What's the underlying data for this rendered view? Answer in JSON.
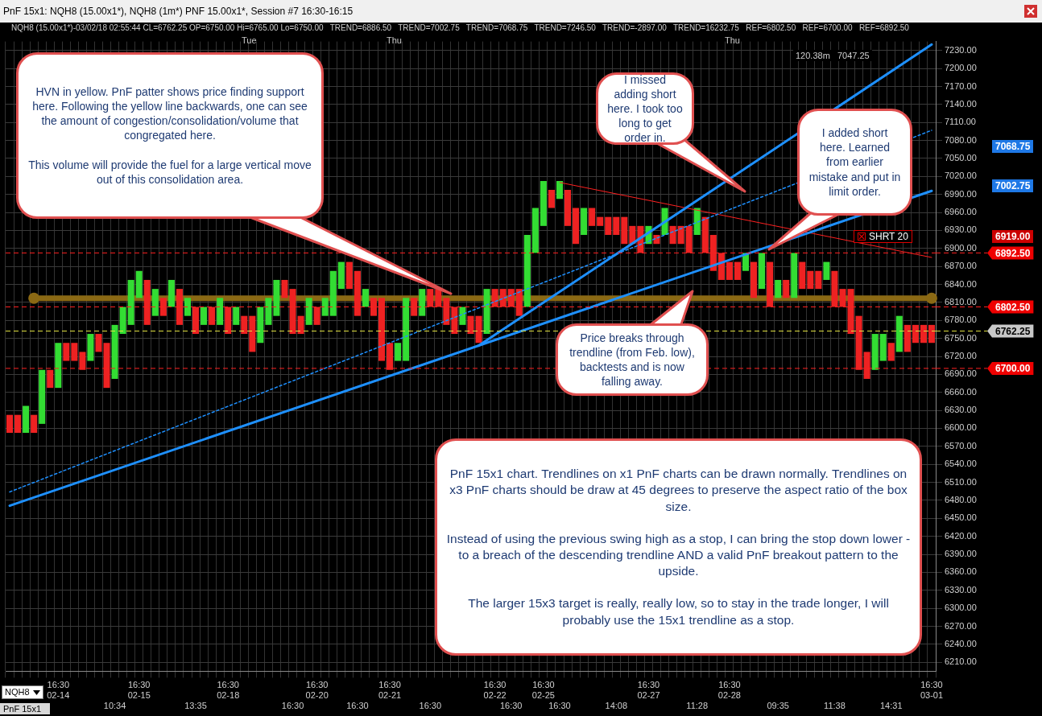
{
  "chart_data": {
    "type": "bar",
    "title": "PnF 15x1: NQH8 (15.00x1*), NQH8 (1m*) PNF 15.00x1*, Session #7 16:30-16:15",
    "subtitle": "NQH8 (15.00x1*)-03/02/18 02:55:44 CL=6762.25 OP=6750.00 Hi=6765.00 Lo=6750.00   TREND=6886.50   TREND=7002.75   TREND=7068.75   TREND=7246.50   TREND=-2897.00   TREND=16232.75   REF=6802.50   REF=6700.00   REF=6892.50",
    "categories": [
      null,
      null,
      null,
      null,
      null,
      null,
      "16:30\n02-14",
      null,
      null,
      null,
      null,
      null,
      null,
      "10:34",
      null,
      null,
      "16:30\n02-15",
      null,
      null,
      null,
      null,
      null,
      null,
      "13:35",
      null,
      null,
      null,
      "16:30\n02-18",
      null,
      null,
      null,
      null,
      null,
      null,
      null,
      "16:30",
      null,
      null,
      "16:30\n02-20",
      null,
      null,
      null,
      null,
      "16:30",
      null,
      null,
      null,
      "16:30\n02-21",
      null,
      null,
      null,
      null,
      "16:30",
      null,
      null,
      null,
      null,
      null,
      null,
      null,
      "16:30\n02-22",
      null,
      "16:30",
      null,
      null,
      null,
      "16:30\n02-25",
      null,
      "16:30",
      null,
      null,
      null,
      null,
      null,
      null,
      "14:08",
      null,
      null,
      null,
      "16:30\n02-27",
      null,
      null,
      null,
      null,
      null,
      "11:28",
      null,
      null,
      null,
      "16:30\n02-28",
      null,
      null,
      null,
      null,
      null,
      "09:35",
      null,
      null,
      null,
      null,
      null,
      null,
      "11:38",
      null,
      null,
      null,
      null,
      null,
      null,
      "14:31",
      null,
      null,
      null,
      null,
      "16:30\n03-01"
    ],
    "base": [
      6592.5,
      6592.5,
      6592.5,
      6592.5,
      6607.5,
      6667.5,
      6667.5,
      6712.5,
      6712.5,
      6697.5,
      6712.5,
      6727.5,
      6667.5,
      6682.5,
      6757.5,
      6772.5,
      6817.5,
      6772.5,
      6787.5,
      6787.5,
      6802.5,
      6772.5,
      6787.5,
      6757.5,
      6772.5,
      6772.5,
      6772.5,
      6757.5,
      6772.5,
      6757.5,
      6727.5,
      6742.5,
      6772.5,
      6787.5,
      6817.5,
      6757.5,
      6757.5,
      6772.5,
      6772.5,
      6787.5,
      6787.5,
      6832.5,
      6832.5,
      6787.5,
      6802.5,
      6787.5,
      6712.5,
      6697.5,
      6712.5,
      6712.5,
      6787.5,
      6787.5,
      6802.5,
      6802.5,
      6772.5,
      6757.5,
      6772.5,
      6757.5,
      6742.5,
      6757.5,
      6802.5,
      6802.5,
      6802.5,
      6787.5,
      6802.5,
      6892.5,
      6937.5,
      6967.5,
      6982.5,
      6937.5,
      6907.5,
      6922.5,
      6937.5,
      6937.5,
      6922.5,
      6922.5,
      6907.5,
      6907.5,
      6892.5,
      6907.5,
      6907.5,
      6922.5,
      6907.5,
      6907.5,
      6892.5,
      6922.5,
      6892.5,
      6862.5,
      6847.5,
      6847.5,
      6847.5,
      6862.5,
      6817.5,
      6832.5,
      6802.5,
      6817.5,
      6817.5,
      6817.5,
      6832.5,
      6832.5,
      6832.5,
      6847.5,
      6802.5,
      6802.5,
      6757.5,
      6697.5,
      6682.5,
      6697.5,
      6712.5,
      6712.5,
      6727.5,
      6727.5,
      6742.5,
      6742.5,
      6742.5
    ],
    "values": [
      30,
      30,
      45,
      30,
      90,
      30,
      75,
      30,
      30,
      30,
      45,
      30,
      75,
      90,
      45,
      75,
      45,
      75,
      45,
      30,
      45,
      60,
      30,
      45,
      30,
      30,
      45,
      45,
      30,
      30,
      60,
      60,
      45,
      60,
      30,
      75,
      30,
      45,
      30,
      30,
      75,
      45,
      45,
      75,
      30,
      30,
      105,
      45,
      30,
      105,
      30,
      45,
      30,
      30,
      45,
      45,
      30,
      30,
      45,
      75,
      30,
      30,
      30,
      45,
      120,
      75,
      75,
      30,
      30,
      60,
      60,
      45,
      30,
      15,
      30,
      30,
      45,
      30,
      45,
      30,
      15,
      45,
      30,
      30,
      45,
      45,
      60,
      60,
      45,
      30,
      30,
      30,
      60,
      60,
      75,
      30,
      30,
      75,
      45,
      30,
      30,
      30,
      60,
      30,
      75,
      90,
      45,
      60,
      45,
      30,
      60,
      45,
      30,
      30,
      30
    ],
    "colors": [
      "#ee2222",
      "#ee2222",
      "#33dd33",
      "#ee2222",
      "#33dd33",
      "#ee2222",
      "#33dd33",
      "#ee2222",
      "#ee2222",
      "#ee2222",
      "#33dd33",
      "#ee2222",
      "#ee2222",
      "#33dd33",
      "#33dd33",
      "#33dd33",
      "#33dd33",
      "#ee2222",
      "#33dd33",
      "#ee2222",
      "#33dd33",
      "#ee2222",
      "#33dd33",
      "#ee2222",
      "#33dd33",
      "#ee2222",
      "#33dd33",
      "#ee2222",
      "#33dd33",
      "#ee2222",
      "#ee2222",
      "#33dd33",
      "#33dd33",
      "#33dd33",
      "#ee2222",
      "#ee2222",
      "#ee2222",
      "#33dd33",
      "#ee2222",
      "#33dd33",
      "#33dd33",
      "#33dd33",
      "#ee2222",
      "#ee2222",
      "#33dd33",
      "#ee2222",
      "#ee2222",
      "#ee2222",
      "#33dd33",
      "#33dd33",
      "#ee2222",
      "#33dd33",
      "#ee2222",
      "#ee2222",
      "#ee2222",
      "#ee2222",
      "#33dd33",
      "#ee2222",
      "#ee2222",
      "#33dd33",
      "#ee2222",
      "#ee2222",
      "#ee2222",
      "#ee2222",
      "#33dd33",
      "#33dd33",
      "#33dd33",
      "#ee2222",
      "#33dd33",
      "#ee2222",
      "#ee2222",
      "#33dd33",
      "#ee2222",
      "#ee2222",
      "#ee2222",
      "#ee2222",
      "#ee2222",
      "#ee2222",
      "#ee2222",
      "#33dd33",
      "#ee2222",
      "#33dd33",
      "#ee2222",
      "#ee2222",
      "#ee2222",
      "#33dd33",
      "#ee2222",
      "#ee2222",
      "#ee2222",
      "#ee2222",
      "#ee2222",
      "#33dd33",
      "#ee2222",
      "#33dd33",
      "#ee2222",
      "#33dd33",
      "#ee2222",
      "#33dd33",
      "#ee2222",
      "#ee2222",
      "#ee2222",
      "#33dd33",
      "#ee2222",
      "#ee2222",
      "#ee2222",
      "#ee2222",
      "#ee2222",
      "#33dd33",
      "#33dd33",
      "#ee2222",
      "#33dd33",
      "#ee2222",
      "#ee2222",
      "#ee2222",
      "#ee2222"
    ],
    "series": [
      {
        "type": "line",
        "color": "#1e90ff",
        "values": [
          6471,
          null,
          null,
          null,
          null,
          null,
          null,
          null,
          null,
          null,
          null,
          null,
          null,
          null,
          null,
          null,
          null,
          null,
          null,
          null,
          null,
          null,
          null,
          null,
          null,
          null,
          null,
          null,
          null,
          null,
          null,
          null,
          null,
          null,
          null,
          null,
          null,
          null,
          null,
          null,
          null,
          null,
          null,
          null,
          null,
          null,
          null,
          null,
          null,
          null,
          null,
          null,
          null,
          null,
          null,
          null,
          null,
          null,
          null,
          null,
          null,
          null,
          null,
          null,
          null,
          null,
          null,
          null,
          null,
          null,
          null,
          null,
          null,
          null,
          null,
          null,
          null,
          null,
          null,
          null,
          null,
          null,
          null,
          null,
          null,
          null,
          null,
          null,
          null,
          null,
          null,
          null,
          null,
          null,
          null,
          null,
          null,
          null,
          null,
          null,
          null,
          null,
          null,
          null,
          null,
          null,
          null,
          null,
          null,
          null,
          null,
          null,
          null,
          null,
          6996
        ]
      },
      {
        "type": "line",
        "color": "#1e90ff",
        "values": [
          null,
          null,
          null,
          null,
          null,
          null,
          null,
          null,
          null,
          null,
          null,
          null,
          null,
          null,
          null,
          null,
          null,
          null,
          null,
          null,
          null,
          null,
          null,
          null,
          null,
          null,
          null,
          null,
          null,
          null,
          null,
          null,
          null,
          null,
          null,
          null,
          null,
          null,
          null,
          null,
          null,
          null,
          null,
          null,
          null,
          null,
          null,
          null,
          null,
          null,
          null,
          null,
          null,
          null,
          null,
          null,
          null,
          null,
          6738,
          null,
          null,
          null,
          null,
          null,
          null,
          null,
          null,
          null,
          null,
          null,
          null,
          null,
          null,
          null,
          null,
          null,
          null,
          null,
          null,
          null,
          null,
          null,
          null,
          null,
          null,
          null,
          null,
          null,
          null,
          null,
          null,
          null,
          null,
          null,
          null,
          null,
          null,
          null,
          null,
          null,
          null,
          null,
          null,
          null,
          null,
          null,
          null,
          null,
          null,
          null,
          null,
          null,
          null,
          null,
          7240
        ]
      },
      {
        "type": "line",
        "color": "#1e90ff",
        "line_style": "dotted",
        "values": [
          6494,
          null,
          null,
          null,
          null,
          null,
          null,
          null,
          null,
          null,
          null,
          null,
          null,
          null,
          null,
          null,
          null,
          null,
          null,
          null,
          null,
          null,
          null,
          null,
          null,
          null,
          null,
          null,
          null,
          null,
          null,
          null,
          null,
          null,
          null,
          null,
          null,
          null,
          null,
          null,
          null,
          null,
          null,
          null,
          null,
          null,
          null,
          null,
          null,
          null,
          null,
          null,
          null,
          null,
          null,
          null,
          null,
          null,
          null,
          null,
          null,
          null,
          null,
          null,
          null,
          null,
          null,
          null,
          null,
          null,
          null,
          null,
          null,
          null,
          null,
          null,
          null,
          null,
          null,
          null,
          null,
          null,
          null,
          null,
          null,
          null,
          null,
          null,
          null,
          null,
          null,
          null,
          null,
          null,
          null,
          null,
          null,
          null,
          null,
          null,
          null,
          null,
          null,
          null,
          null,
          null,
          null,
          null,
          null,
          null,
          null,
          null,
          null,
          null,
          7097
        ]
      },
      {
        "type": "line",
        "color": "#ff2020",
        "values": [
          null,
          null,
          null,
          null,
          null,
          null,
          null,
          null,
          null,
          null,
          null,
          null,
          null,
          null,
          null,
          null,
          null,
          null,
          null,
          null,
          null,
          null,
          null,
          null,
          null,
          null,
          null,
          null,
          null,
          null,
          null,
          null,
          null,
          null,
          null,
          null,
          null,
          null,
          null,
          null,
          null,
          null,
          null,
          null,
          null,
          null,
          null,
          null,
          null,
          null,
          null,
          null,
          null,
          null,
          null,
          null,
          null,
          null,
          null,
          null,
          null,
          null,
          null,
          null,
          null,
          null,
          null,
          null,
          7010,
          null,
          null,
          null,
          null,
          null,
          null,
          null,
          null,
          null,
          null,
          null,
          null,
          null,
          null,
          null,
          null,
          null,
          null,
          null,
          null,
          null,
          null,
          null,
          null,
          null,
          null,
          null,
          null,
          null,
          null,
          null,
          null,
          null,
          null,
          null,
          null,
          null,
          null,
          null,
          null,
          null,
          null,
          null,
          null,
          null,
          6885
        ]
      },
      {
        "type": "line",
        "color": "#8b6914",
        "marker": "circle",
        "values": [
          null,
          null,
          null,
          6817,
          null,
          null,
          null,
          null,
          null,
          null,
          null,
          null,
          null,
          null,
          null,
          null,
          null,
          null,
          null,
          null,
          null,
          null,
          null,
          null,
          null,
          null,
          null,
          null,
          null,
          null,
          null,
          null,
          null,
          null,
          null,
          null,
          null,
          null,
          null,
          null,
          null,
          null,
          null,
          null,
          null,
          null,
          null,
          null,
          null,
          null,
          null,
          null,
          null,
          null,
          null,
          null,
          null,
          null,
          null,
          null,
          null,
          null,
          null,
          null,
          null,
          null,
          null,
          null,
          null,
          null,
          null,
          null,
          null,
          null,
          null,
          null,
          null,
          null,
          null,
          null,
          null,
          null,
          null,
          null,
          null,
          null,
          null,
          null,
          null,
          null,
          null,
          null,
          null,
          null,
          null,
          null,
          null,
          null,
          null,
          null,
          null,
          null,
          null,
          null,
          null,
          null,
          null,
          null,
          null,
          null,
          null,
          null,
          null,
          null,
          6817
        ]
      }
    ],
    "ylim": [
      6195,
      7245
    ],
    "yticks": [
      {
        "value": 6210,
        "label": "6210.00"
      },
      {
        "value": 6240,
        "label": "6240.00"
      },
      {
        "value": 6270,
        "label": "6270.00"
      },
      {
        "value": 6300,
        "label": "6300.00"
      },
      {
        "value": 6330,
        "label": "6330.00"
      },
      {
        "value": 6360,
        "label": "6360.00"
      },
      {
        "value": 6390,
        "label": "6390.00"
      },
      {
        "value": 6420,
        "label": "6420.00"
      },
      {
        "value": 6450,
        "label": "6450.00"
      },
      {
        "value": 6480,
        "label": "6480.00"
      },
      {
        "value": 6510,
        "label": "6510.00"
      },
      {
        "value": 6540,
        "label": "6540.00"
      },
      {
        "value": 6570,
        "label": "6570.00"
      },
      {
        "value": 6600,
        "label": "6600.00"
      },
      {
        "value": 6630,
        "label": "6630.00"
      },
      {
        "value": 6660,
        "label": "6660.00"
      },
      {
        "value": 6690,
        "label": "6690.00"
      },
      {
        "value": 6720,
        "label": "6720.00"
      },
      {
        "value": 6750,
        "label": "6750.00"
      },
      {
        "value": 6780,
        "label": "6780.00"
      },
      {
        "value": 6810,
        "label": "6810.00"
      },
      {
        "value": 6840,
        "label": "6840.00"
      },
      {
        "value": 6870,
        "label": "6870.00"
      },
      {
        "value": 6900,
        "label": "6900.00"
      },
      {
        "value": 6930,
        "label": "6930.00"
      },
      {
        "value": 6960,
        "label": "6960.00"
      },
      {
        "value": 6990,
        "label": "6990.00"
      },
      {
        "value": 7020,
        "label": "7020.00"
      },
      {
        "value": 7050,
        "label": "7050.00"
      },
      {
        "value": 7080,
        "label": "7080.00"
      },
      {
        "value": 7110,
        "label": "7110.00"
      },
      {
        "value": 7140,
        "label": "7140.00"
      },
      {
        "value": 7170,
        "label": "7170.00"
      },
      {
        "value": 7200,
        "label": "7200.00"
      },
      {
        "value": 7230,
        "label": "7230.00"
      }
    ],
    "grid": true,
    "ref_lines": [
      {
        "axis": "y",
        "value": 6892.5,
        "label": "6892.50",
        "color": "#ff2020",
        "line_style": "dashed"
      },
      {
        "axis": "y",
        "value": 6802.5,
        "label": "6802.50",
        "color": "#ff2020",
        "line_style": "dashed"
      },
      {
        "axis": "y",
        "value": 6700,
        "label": "6700.00",
        "color": "#ff2020",
        "line_style": "dashed"
      },
      {
        "axis": "y",
        "value": 6762.25,
        "label": "6762.25",
        "color": "#e0e040",
        "line_style": "dashed"
      }
    ],
    "annotations": [
      "HVN in yellow. PnF patter shows price finding support here. Following the yellow line backwards, one can see the amount of congestion/consolidation/volume that congregated here.\n\nThis volume will provide the fuel for a large vertical move out of this consolidation area.",
      "I missed adding short here. I took too long to get order in.",
      "I added short here. Learned from earlier mistake and put in limit order.",
      "Price breaks through trendline (from Feb. low), backtests and is now falling away.",
      "PnF 15x1 chart. Trendlines on x1 PnF charts can be drawn normally. Trendlines on x3 PnF charts should be draw at 45 degrees to preserve the aspect ratio of the box size.\n\nInstead of using the previous swing high as a stop, I can bring the stop down lower - to a breach of the descending trendline AND a valid PnF breakout pattern to the upside.\n\nThe larger 15x3 target is really, really low, so to stay in the trade longer, I will probably use the 15x1 trendline as a stop.",
      "Tue",
      "Thu",
      "Thu",
      "7068.75",
      "7002.75",
      "6919.00",
      "SHRT 20",
      "120.38m   7047.25",
      "NQH8",
      "PnF 15x1"
    ]
  }
}
